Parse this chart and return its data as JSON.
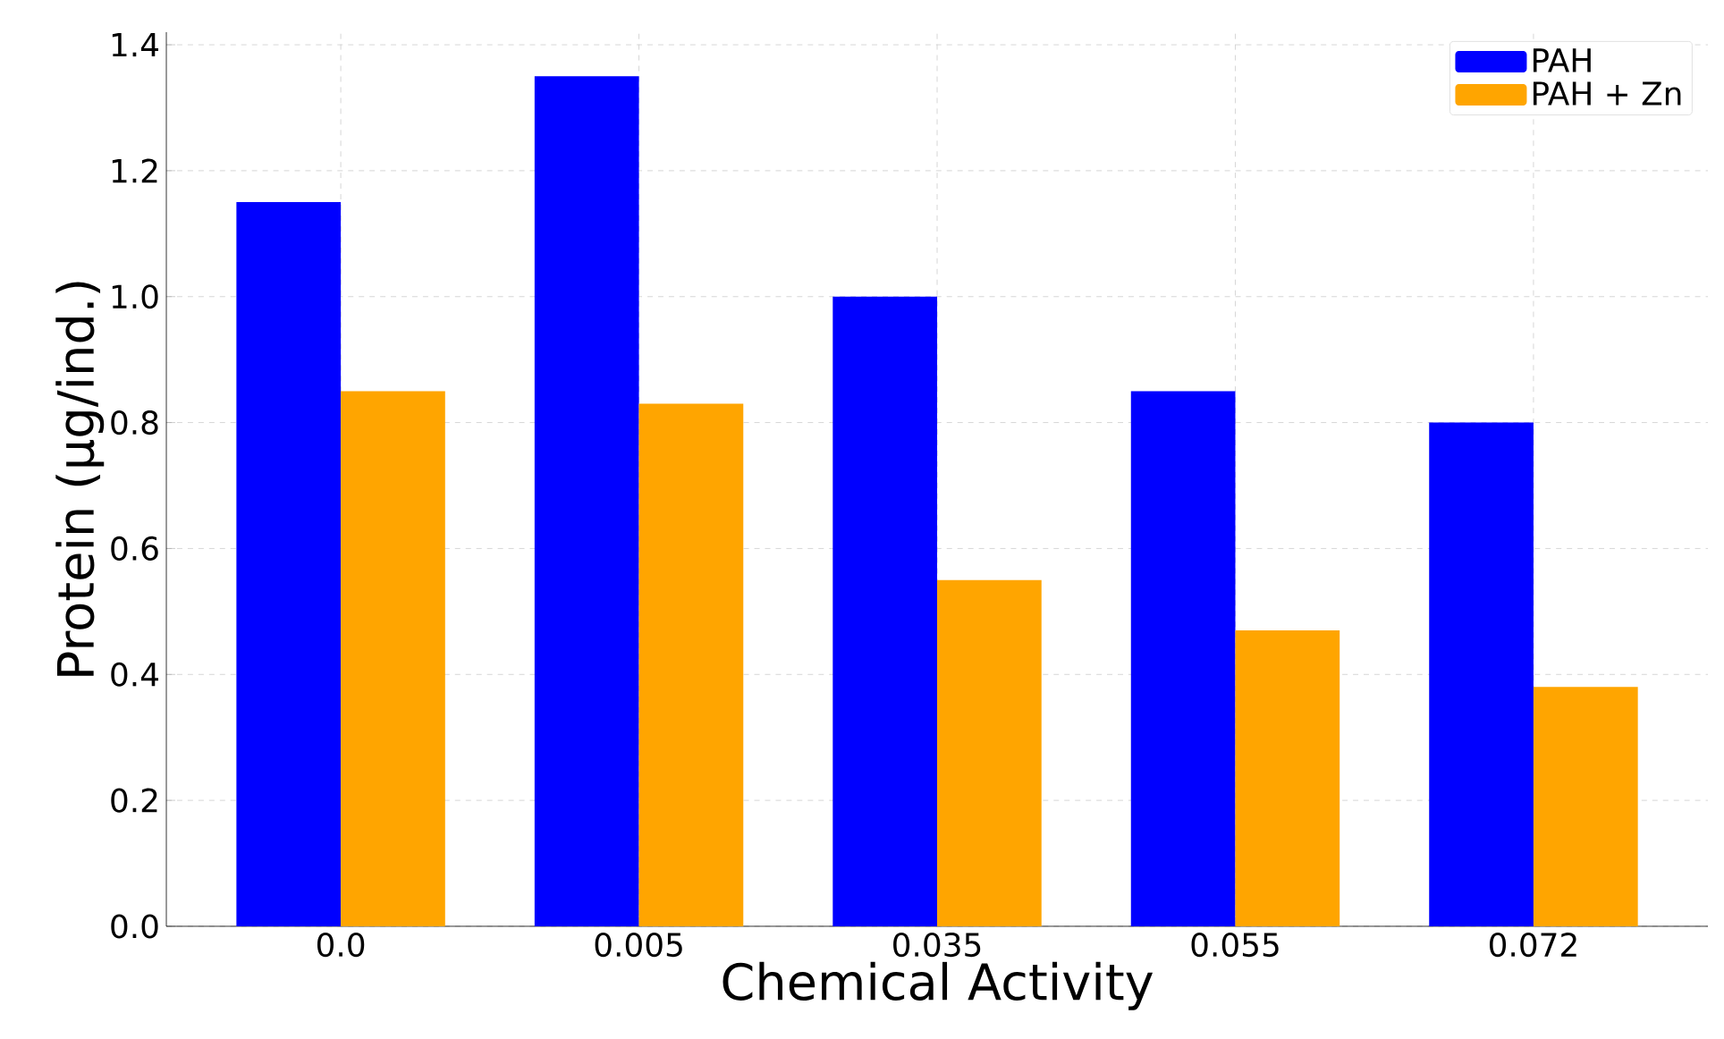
{
  "chart_data": {
    "type": "bar",
    "xlabel": "Chemical Activity",
    "ylabel": "Protein (µg/ind.)",
    "categories": [
      "0.0",
      "0.005",
      "0.035",
      "0.055",
      "0.072"
    ],
    "series": [
      {
        "name": "PAH",
        "color": "#0000ff",
        "values": [
          1.15,
          1.35,
          1.0,
          0.85,
          0.8
        ]
      },
      {
        "name": "PAH + Zn",
        "color": "#ffa500",
        "values": [
          0.85,
          0.83,
          0.55,
          0.47,
          0.38
        ]
      }
    ],
    "ylim": [
      0,
      1.42
    ],
    "yticks": [
      {
        "value": 0,
        "label": "0.0"
      },
      {
        "value": 0.2,
        "label": "0.2"
      },
      {
        "value": 0.4,
        "label": "0.4"
      },
      {
        "value": 0.6,
        "label": "0.6"
      },
      {
        "value": 0.8,
        "label": "0.8"
      },
      {
        "value": 1.0,
        "label": "1.0"
      },
      {
        "value": 1.2,
        "label": "1.2"
      },
      {
        "value": 1.4,
        "label": "1.4"
      }
    ],
    "grid": true,
    "legend": "top right"
  }
}
